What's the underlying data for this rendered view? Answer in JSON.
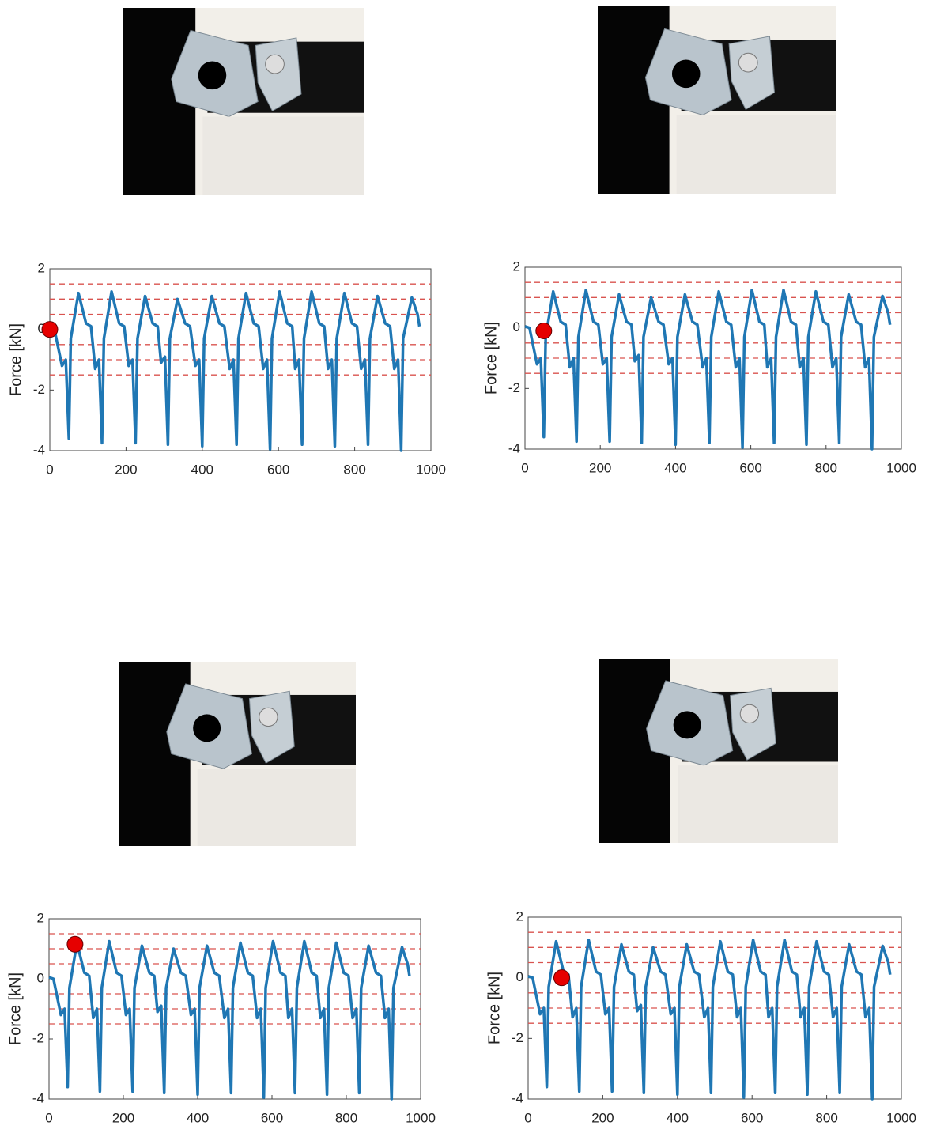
{
  "chart_data": [
    {
      "type": "line",
      "y_label": "Force [kN]",
      "xlim": [
        0,
        1000
      ],
      "ylim": [
        -4,
        2
      ],
      "xticks": [
        0,
        200,
        400,
        600,
        800,
        1000
      ],
      "yticks": [
        -4,
        -2,
        0,
        2
      ],
      "x": [
        0,
        12,
        32,
        42,
        50,
        55,
        75,
        95,
        108,
        119,
        129,
        137,
        142,
        162,
        182,
        195,
        207,
        217,
        225,
        230,
        250,
        270,
        283,
        292,
        302,
        310,
        315,
        335,
        355,
        368,
        382,
        392,
        400,
        405,
        425,
        445,
        458,
        472,
        482,
        490,
        495,
        515,
        535,
        548,
        560,
        570,
        578,
        583,
        603,
        623,
        636,
        644,
        654,
        662,
        667,
        687,
        707,
        720,
        730,
        740,
        748,
        753,
        773,
        793,
        806,
        817,
        827,
        835,
        840,
        860,
        880,
        893,
        904,
        914,
        922,
        927,
        950,
        965,
        970
      ],
      "values": [
        0.05,
        0,
        -1.2,
        -1,
        -3.6,
        -0.3,
        1.2,
        0.2,
        0.1,
        -1.3,
        -1,
        -3.75,
        -0.3,
        1.25,
        0.2,
        0.1,
        -1.2,
        -1,
        -3.75,
        -0.3,
        1.1,
        0.2,
        0.1,
        -1.1,
        -0.9,
        -3.8,
        -0.3,
        1,
        0.2,
        0.1,
        -1.2,
        -1,
        -3.85,
        -0.3,
        1.1,
        0.2,
        0.1,
        -1.3,
        -1,
        -3.8,
        -0.3,
        1.2,
        0.2,
        0.1,
        -1.3,
        -1,
        -3.95,
        -0.3,
        1.25,
        0.2,
        0.1,
        -1.3,
        -1,
        -3.8,
        -0.3,
        1.25,
        0.2,
        0.1,
        -1.3,
        -1,
        -3.85,
        -0.3,
        1.2,
        0.2,
        0.1,
        -1.3,
        -1,
        -3.8,
        -0.3,
        1.1,
        0.2,
        0.1,
        -1.3,
        -1,
        -4,
        -0.3,
        1.05,
        0.5,
        0.1
      ],
      "color": "#1f77b4",
      "reference_lines": [
        1.5,
        1,
        0.5,
        -0.5,
        -1,
        -1.5
      ],
      "reference_color": "#d9534f",
      "marker": {
        "x": 0,
        "y": 0,
        "color": "#e60000"
      }
    },
    {
      "type": "line",
      "y_label": "Force [kN]",
      "xlim": [
        0,
        1000
      ],
      "ylim": [
        -4,
        2
      ],
      "xticks": [
        0,
        200,
        400,
        600,
        800,
        1000
      ],
      "yticks": [
        -4,
        -2,
        0,
        2
      ],
      "x": [
        0,
        12,
        32,
        42,
        50,
        55,
        75,
        95,
        108,
        119,
        129,
        137,
        142,
        162,
        182,
        195,
        207,
        217,
        225,
        230,
        250,
        270,
        283,
        292,
        302,
        310,
        315,
        335,
        355,
        368,
        382,
        392,
        400,
        405,
        425,
        445,
        458,
        472,
        482,
        490,
        495,
        515,
        535,
        548,
        560,
        570,
        578,
        583,
        603,
        623,
        636,
        644,
        654,
        662,
        667,
        687,
        707,
        720,
        730,
        740,
        748,
        753,
        773,
        793,
        806,
        817,
        827,
        835,
        840,
        860,
        880,
        893,
        904,
        914,
        922,
        927,
        950,
        965,
        970
      ],
      "values": [
        0.05,
        0,
        -1.2,
        -1,
        -3.6,
        -0.3,
        1.2,
        0.2,
        0.1,
        -1.3,
        -1,
        -3.75,
        -0.3,
        1.25,
        0.2,
        0.1,
        -1.2,
        -1,
        -3.75,
        -0.3,
        1.1,
        0.2,
        0.1,
        -1.1,
        -0.9,
        -3.8,
        -0.3,
        1,
        0.2,
        0.1,
        -1.2,
        -1,
        -3.85,
        -0.3,
        1.1,
        0.2,
        0.1,
        -1.3,
        -1,
        -3.8,
        -0.3,
        1.2,
        0.2,
        0.1,
        -1.3,
        -1,
        -3.95,
        -0.3,
        1.25,
        0.2,
        0.1,
        -1.3,
        -1,
        -3.8,
        -0.3,
        1.25,
        0.2,
        0.1,
        -1.3,
        -1,
        -3.85,
        -0.3,
        1.2,
        0.2,
        0.1,
        -1.3,
        -1,
        -3.8,
        -0.3,
        1.1,
        0.2,
        0.1,
        -1.3,
        -1,
        -4,
        -0.3,
        1.05,
        0.5,
        0.1
      ],
      "color": "#1f77b4",
      "reference_lines": [
        1.5,
        1,
        0.5,
        -0.5,
        -1,
        -1.5
      ],
      "reference_color": "#d9534f",
      "marker": {
        "x": 50,
        "y": -0.1,
        "color": "#e60000"
      }
    },
    {
      "type": "line",
      "y_label": "Force [kN]",
      "xlim": [
        0,
        1000
      ],
      "ylim": [
        -4,
        2
      ],
      "xticks": [
        0,
        200,
        400,
        600,
        800,
        1000
      ],
      "yticks": [
        -4,
        -2,
        0,
        2
      ],
      "x": [
        0,
        12,
        32,
        42,
        50,
        55,
        75,
        95,
        108,
        119,
        129,
        137,
        142,
        162,
        182,
        195,
        207,
        217,
        225,
        230,
        250,
        270,
        283,
        292,
        302,
        310,
        315,
        335,
        355,
        368,
        382,
        392,
        400,
        405,
        425,
        445,
        458,
        472,
        482,
        490,
        495,
        515,
        535,
        548,
        560,
        570,
        578,
        583,
        603,
        623,
        636,
        644,
        654,
        662,
        667,
        687,
        707,
        720,
        730,
        740,
        748,
        753,
        773,
        793,
        806,
        817,
        827,
        835,
        840,
        860,
        880,
        893,
        904,
        914,
        922,
        927,
        950,
        965,
        970
      ],
      "values": [
        0.05,
        0,
        -1.2,
        -1,
        -3.6,
        -0.3,
        1.2,
        0.2,
        0.1,
        -1.3,
        -1,
        -3.75,
        -0.3,
        1.25,
        0.2,
        0.1,
        -1.2,
        -1,
        -3.75,
        -0.3,
        1.1,
        0.2,
        0.1,
        -1.1,
        -0.9,
        -3.8,
        -0.3,
        1,
        0.2,
        0.1,
        -1.2,
        -1,
        -3.85,
        -0.3,
        1.1,
        0.2,
        0.1,
        -1.3,
        -1,
        -3.8,
        -0.3,
        1.2,
        0.2,
        0.1,
        -1.3,
        -1,
        -3.95,
        -0.3,
        1.25,
        0.2,
        0.1,
        -1.3,
        -1,
        -3.8,
        -0.3,
        1.25,
        0.2,
        0.1,
        -1.3,
        -1,
        -3.85,
        -0.3,
        1.2,
        0.2,
        0.1,
        -1.3,
        -1,
        -3.8,
        -0.3,
        1.1,
        0.2,
        0.1,
        -1.3,
        -1,
        -4,
        -0.3,
        1.05,
        0.5,
        0.1
      ],
      "color": "#1f77b4",
      "reference_lines": [
        1.5,
        1,
        0.5,
        -0.5,
        -1,
        -1.5
      ],
      "reference_color": "#d9534f",
      "marker": {
        "x": 70,
        "y": 1.15,
        "color": "#e60000"
      }
    },
    {
      "type": "line",
      "y_label": "Force [kN]",
      "xlim": [
        0,
        1000
      ],
      "ylim": [
        -4,
        2
      ],
      "xticks": [
        0,
        200,
        400,
        600,
        800,
        1000
      ],
      "yticks": [
        -4,
        -2,
        0,
        2
      ],
      "x": [
        0,
        12,
        32,
        42,
        50,
        55,
        75,
        95,
        108,
        119,
        129,
        137,
        142,
        162,
        182,
        195,
        207,
        217,
        225,
        230,
        250,
        270,
        283,
        292,
        302,
        310,
        315,
        335,
        355,
        368,
        382,
        392,
        400,
        405,
        425,
        445,
        458,
        472,
        482,
        490,
        495,
        515,
        535,
        548,
        560,
        570,
        578,
        583,
        603,
        623,
        636,
        644,
        654,
        662,
        667,
        687,
        707,
        720,
        730,
        740,
        748,
        753,
        773,
        793,
        806,
        817,
        827,
        835,
        840,
        860,
        880,
        893,
        904,
        914,
        922,
        927,
        950,
        965,
        970
      ],
      "values": [
        0.05,
        0,
        -1.2,
        -1,
        -3.6,
        -0.3,
        1.2,
        0.2,
        0.1,
        -1.3,
        -1,
        -3.75,
        -0.3,
        1.25,
        0.2,
        0.1,
        -1.2,
        -1,
        -3.75,
        -0.3,
        1.1,
        0.2,
        0.1,
        -1.1,
        -0.9,
        -3.8,
        -0.3,
        1,
        0.2,
        0.1,
        -1.2,
        -1,
        -3.85,
        -0.3,
        1.1,
        0.2,
        0.1,
        -1.3,
        -1,
        -3.8,
        -0.3,
        1.2,
        0.2,
        0.1,
        -1.3,
        -1,
        -3.95,
        -0.3,
        1.25,
        0.2,
        0.1,
        -1.3,
        -1,
        -3.8,
        -0.3,
        1.25,
        0.2,
        0.1,
        -1.3,
        -1,
        -3.85,
        -0.3,
        1.2,
        0.2,
        0.1,
        -1.3,
        -1,
        -3.8,
        -0.3,
        1.1,
        0.2,
        0.1,
        -1.3,
        -1,
        -4,
        -0.3,
        1.05,
        0.5,
        0.1
      ],
      "color": "#1f77b4",
      "reference_lines": [
        1.5,
        1,
        0.5,
        -0.5,
        -1,
        -1.5
      ],
      "reference_color": "#d9534f",
      "marker": {
        "x": 90,
        "y": 0,
        "color": "#e60000"
      }
    }
  ]
}
